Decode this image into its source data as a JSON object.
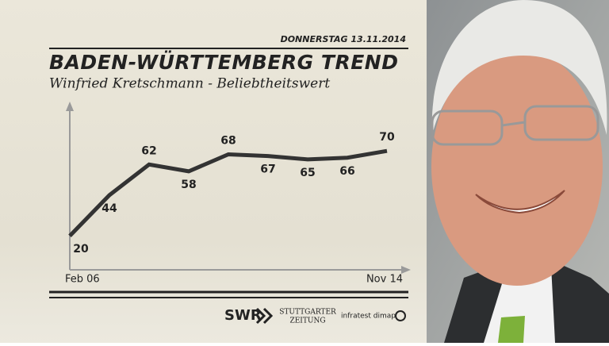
{
  "chart_data": {
    "type": "line",
    "date": "DONNERSTAG 13.11.2014",
    "title": "BADEN-WÜRTTEMBERG TREND",
    "subtitle": "Winfried Kretschmann - Beliebtheitswert",
    "categories": [
      "Feb 06",
      null,
      null,
      null,
      null,
      null,
      null,
      null,
      "Nov 14"
    ],
    "values": [
      20,
      44,
      62,
      58,
      68,
      67,
      65,
      66,
      70
    ],
    "color": "#333333",
    "ylim": [
      0,
      100
    ],
    "sources": [
      "SWR",
      "STUTTGARTER",
      "ZEITUNG",
      "infratest dimap"
    ]
  }
}
